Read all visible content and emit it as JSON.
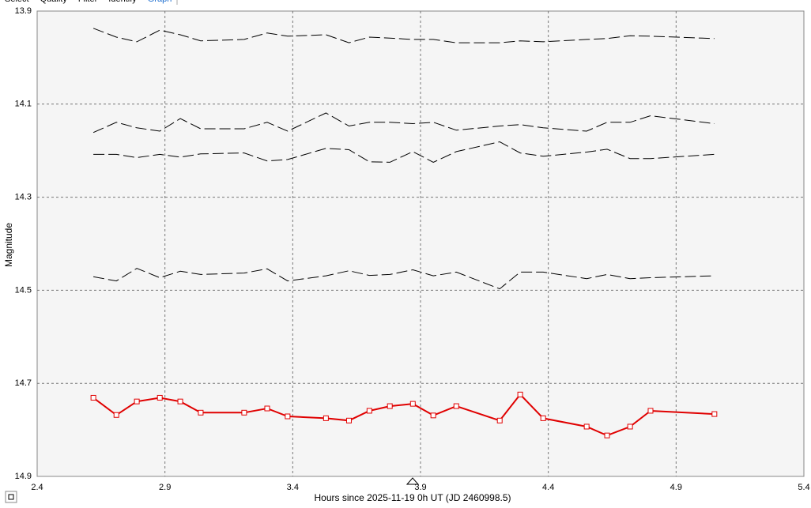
{
  "tabs": [
    "Select",
    "Quality",
    "Filter",
    "Identify",
    "Graph"
  ],
  "chart_data": {
    "type": "line",
    "xlabel": "Hours since 2025-11-19 0h UT (JD 2460998.5)",
    "ylabel": "Magnitude",
    "x": [
      2.62,
      2.71,
      2.79,
      2.88,
      2.96,
      3.04,
      3.21,
      3.3,
      3.38,
      3.53,
      3.62,
      3.7,
      3.78,
      3.87,
      3.95,
      4.04,
      4.21,
      4.29,
      4.38,
      4.55,
      4.63,
      4.72,
      4.8,
      5.05
    ],
    "series": [
      {
        "color": "#000000",
        "line_style": "dashed",
        "markers": false,
        "values": [
          13.937,
          13.956,
          13.966,
          13.941,
          13.951,
          13.964,
          13.961,
          13.947,
          13.954,
          13.951,
          13.968,
          13.956,
          13.958,
          13.961,
          13.961,
          13.968,
          13.968,
          13.964,
          13.966,
          13.961,
          13.959,
          13.953,
          13.954,
          13.959
        ]
      },
      {
        "color": "#000000",
        "line_style": "dashed",
        "markers": false,
        "values": [
          14.161,
          14.139,
          14.151,
          14.158,
          14.131,
          14.153,
          14.153,
          14.139,
          14.158,
          14.119,
          14.147,
          14.139,
          14.139,
          14.142,
          14.139,
          14.156,
          14.147,
          14.144,
          14.151,
          14.158,
          14.139,
          14.139,
          14.125,
          14.142
        ]
      },
      {
        "color": "#000000",
        "line_style": "dashed",
        "markers": false,
        "values": [
          14.208,
          14.208,
          14.215,
          14.208,
          14.214,
          14.207,
          14.205,
          14.222,
          14.219,
          14.195,
          14.198,
          14.224,
          14.225,
          14.202,
          14.225,
          14.202,
          14.181,
          14.205,
          14.212,
          14.203,
          14.197,
          14.217,
          14.217,
          14.208
        ]
      },
      {
        "color": "#000000",
        "line_style": "dashed",
        "markers": false,
        "values": [
          14.471,
          14.48,
          14.453,
          14.473,
          14.459,
          14.466,
          14.463,
          14.454,
          14.48,
          14.469,
          14.458,
          14.468,
          14.466,
          14.456,
          14.469,
          14.461,
          14.497,
          14.461,
          14.461,
          14.475,
          14.466,
          14.475,
          14.473,
          14.469
        ]
      },
      {
        "color": "#e00000",
        "line_style": "solid",
        "markers": true,
        "values": [
          14.731,
          14.768,
          14.739,
          14.731,
          14.739,
          14.763,
          14.763,
          14.754,
          14.771,
          14.775,
          14.78,
          14.759,
          14.749,
          14.744,
          14.769,
          14.749,
          14.78,
          14.724,
          14.775,
          14.793,
          14.812,
          14.793,
          14.759,
          14.766
        ]
      }
    ],
    "xlim": [
      2.4,
      5.4
    ],
    "xticks": [
      2.4,
      2.9,
      3.4,
      3.9,
      4.4,
      4.9,
      5.4
    ],
    "ylim": [
      13.9,
      14.9
    ],
    "yticks": [
      13.9,
      14.1,
      14.3,
      14.5,
      14.7,
      14.9
    ],
    "y_inverted": true,
    "grid": true,
    "background": "#f5f5f5"
  }
}
